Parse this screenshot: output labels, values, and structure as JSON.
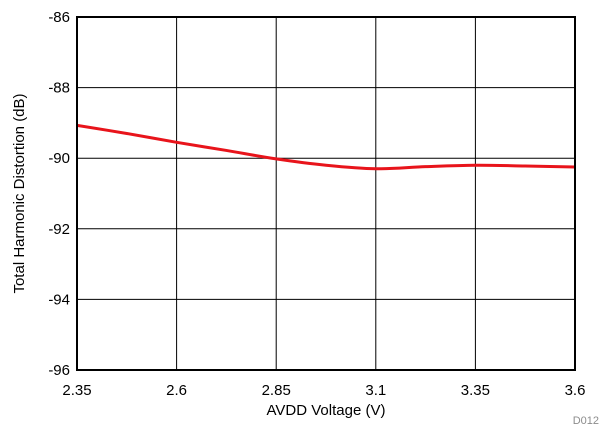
{
  "chart_data": {
    "type": "line",
    "title": "",
    "xlabel": "AVDD Voltage (V)",
    "ylabel": "Total Harmonic Distortion (dB)",
    "xlim": [
      2.35,
      3.6
    ],
    "ylim": [
      -96,
      -86
    ],
    "x_ticks": [
      2.35,
      2.6,
      2.85,
      3.1,
      3.35,
      3.6
    ],
    "x_tick_labels": [
      "2.35",
      "2.6",
      "2.85",
      "3.1",
      "3.35",
      "3.6"
    ],
    "y_ticks": [
      -96,
      -94,
      -92,
      -90,
      -88,
      -86
    ],
    "y_tick_labels": [
      "-96",
      "-94",
      "-92",
      "-90",
      "-88",
      "-86"
    ],
    "grid": true,
    "legend": "none",
    "series": [
      {
        "color": "#e8141b",
        "x": [
          2.35,
          2.475,
          2.6,
          2.725,
          2.85,
          2.975,
          3.1,
          3.225,
          3.35,
          3.475,
          3.6
        ],
        "y": [
          -89.07,
          -89.3,
          -89.55,
          -89.78,
          -90.02,
          -90.2,
          -90.3,
          -90.24,
          -90.2,
          -90.22,
          -90.25
        ]
      }
    ],
    "figure_code": "D012"
  }
}
